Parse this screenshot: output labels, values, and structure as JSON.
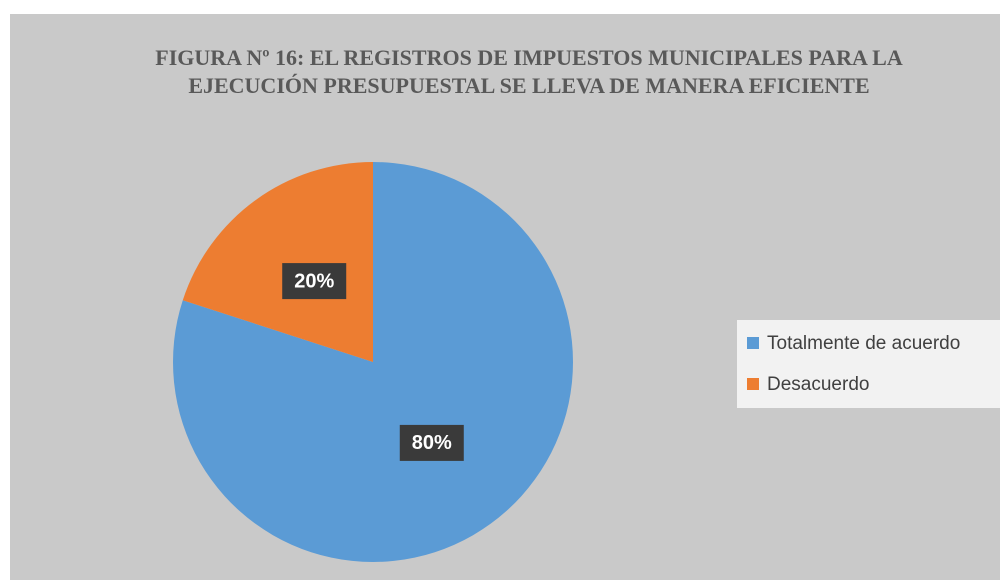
{
  "chart_data": {
    "type": "pie",
    "title": "FIGURA Nº 16: EL REGISTROS DE IMPUESTOS MUNICIPALES PARA LA EJECUCIÓN PRESUPUESTAL SE LLEVA DE MANERA EFICIENTE",
    "categories": [
      "Totalmente de acuerdo",
      "Desacuerdo"
    ],
    "values": [
      80,
      20
    ],
    "value_labels": [
      "80%",
      "20%"
    ],
    "colors": [
      "#5b9bd5",
      "#ed7d31"
    ],
    "legend": "right"
  }
}
